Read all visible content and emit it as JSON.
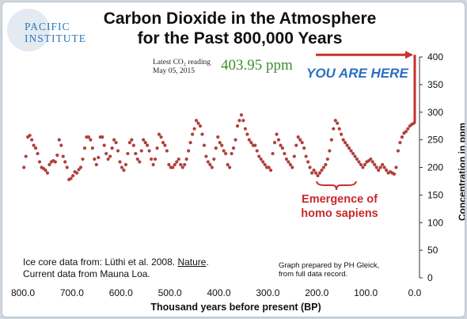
{
  "logo": {
    "line1": "PACIFIC",
    "line2": "INSTITUTE"
  },
  "annotations": {
    "reading_label_1": "Latest CO₂ reading",
    "reading_label_2": "May 05, 2015",
    "reading_value": "403.95 ppm",
    "you_are_here": "YOU ARE HERE",
    "emergence_1": "Emergence of",
    "emergence_2": "homo sapiens",
    "source_1_prefix": "Ice core data from: Lüthi et al. 2008. ",
    "source_1_journal": "Nature",
    "source_1_suffix": ".",
    "source_2": "Current data from Mauna Loa.",
    "credit_1": "Graph prepared by PH Gleick,",
    "credit_2": "from full data record."
  },
  "colors": {
    "data": "#b0403c",
    "arrow": "#c9302c",
    "here": "#2a6fc0",
    "reading": "#3c8e2d",
    "logo": "#2f78b3"
  },
  "chart_data": {
    "type": "scatter",
    "title": "Carbon Dioxide in the Atmosphere for the Past 800,000 Years",
    "xlabel": "Thousand years before present (BP)",
    "ylabel": "Concentration in ppm",
    "xlim": [
      800,
      0
    ],
    "ylim": [
      0,
      400
    ],
    "x_ticks": [
      "800.0",
      "700.0",
      "600.0",
      "500.0",
      "400.0",
      "300.0",
      "200.0",
      "100.0",
      "0.0"
    ],
    "x_tick_values": [
      800,
      700,
      600,
      500,
      400,
      300,
      200,
      100,
      0
    ],
    "y_ticks": [
      "0",
      "50",
      "100",
      "150",
      "200",
      "250",
      "300",
      "350",
      "400"
    ],
    "y_tick_values": [
      0,
      50,
      100,
      150,
      200,
      250,
      300,
      350,
      400
    ],
    "grid": false,
    "series": [
      {
        "x": [
          798,
          794,
          790,
          786,
          782,
          778,
          774,
          770,
          766,
          762,
          758,
          754,
          750,
          746,
          742,
          738,
          734,
          730,
          726,
          722,
          718,
          714,
          710,
          706,
          702,
          698,
          694,
          690,
          686,
          682,
          678,
          674,
          670,
          666,
          662,
          658,
          654,
          650,
          646,
          642,
          638,
          634,
          630,
          626,
          622,
          618,
          614,
          610,
          606,
          602,
          598,
          594,
          590,
          586,
          582,
          578,
          574,
          570,
          566,
          562,
          558,
          554,
          550,
          546,
          542,
          538,
          534,
          530,
          526,
          522,
          518,
          514,
          510,
          506,
          502,
          498,
          494,
          490,
          486,
          482,
          478,
          474,
          470,
          466,
          462,
          458,
          454,
          450,
          446,
          442,
          438,
          434,
          430,
          426,
          422,
          418,
          414,
          410,
          406,
          402,
          398,
          394,
          390,
          386,
          382,
          378,
          374,
          370,
          366,
          362,
          358,
          354,
          350,
          346,
          342,
          338,
          334,
          330,
          326,
          322,
          318,
          314,
          310,
          306,
          302,
          298,
          294,
          290,
          286,
          282,
          278,
          274,
          270,
          266,
          262,
          258,
          254,
          250,
          246,
          242,
          238,
          234,
          230,
          226,
          222,
          218,
          214,
          210,
          206,
          202,
          198,
          194,
          190,
          186,
          182,
          178,
          174,
          170,
          166,
          162,
          158,
          154,
          150,
          146,
          142,
          138,
          134,
          130,
          126,
          122,
          118,
          114,
          110,
          106,
          102,
          98,
          94,
          90,
          86,
          82,
          78,
          74,
          70,
          66,
          62,
          58,
          54,
          50,
          46,
          42,
          38,
          34,
          30,
          26,
          22,
          18,
          14,
          10,
          6,
          2,
          0.1,
          0.05,
          0.02,
          0.01
        ],
        "y": [
          200,
          220,
          255,
          258,
          250,
          240,
          235,
          225,
          210,
          200,
          198,
          195,
          190,
          205,
          210,
          212,
          210,
          222,
          250,
          240,
          220,
          210,
          200,
          178,
          180,
          185,
          192,
          190,
          196,
          200,
          215,
          235,
          255,
          255,
          250,
          235,
          215,
          205,
          218,
          255,
          255,
          240,
          225,
          215,
          220,
          235,
          250,
          245,
          230,
          210,
          200,
          195,
          205,
          225,
          245,
          250,
          240,
          225,
          215,
          210,
          230,
          250,
          245,
          240,
          230,
          215,
          205,
          215,
          235,
          260,
          255,
          245,
          240,
          230,
          205,
          200,
          200,
          205,
          210,
          215,
          205,
          200,
          205,
          215,
          230,
          245,
          260,
          270,
          285,
          280,
          275,
          260,
          240,
          220,
          210,
          205,
          200,
          215,
          235,
          255,
          245,
          240,
          230,
          225,
          205,
          200,
          225,
          235,
          250,
          275,
          285,
          295,
          285,
          270,
          260,
          250,
          245,
          240,
          240,
          230,
          220,
          215,
          210,
          205,
          200,
          200,
          195,
          225,
          245,
          260,
          250,
          240,
          235,
          225,
          215,
          210,
          205,
          200,
          220,
          240,
          255,
          250,
          245,
          235,
          220,
          210,
          200,
          190,
          195,
          190,
          185,
          190,
          195,
          200,
          205,
          215,
          230,
          250,
          270,
          285,
          280,
          270,
          260,
          250,
          245,
          240,
          235,
          230,
          225,
          220,
          215,
          210,
          205,
          200,
          205,
          210,
          212,
          215,
          210,
          205,
          200,
          195,
          200,
          205,
          200,
          195,
          190,
          192,
          190,
          188,
          200,
          230,
          245,
          255,
          262,
          265,
          270,
          275,
          278,
          280,
          290,
          315,
          360,
          403.95
        ]
      }
    ]
  }
}
